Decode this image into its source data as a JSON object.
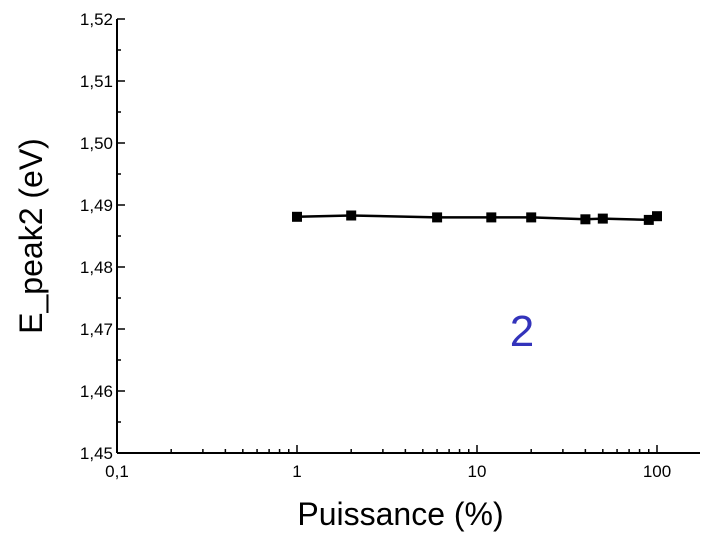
{
  "chart_data": {
    "type": "line",
    "title": "",
    "xlabel": "Puissance (%)",
    "ylabel": "E_peak2 (eV)",
    "x_scale": "log",
    "xlim": [
      0.1,
      200
    ],
    "ylim": [
      1.45,
      1.52
    ],
    "x_ticks": [
      {
        "value": 0.1,
        "label": "0,1"
      },
      {
        "value": 1,
        "label": "1"
      },
      {
        "value": 10,
        "label": "10"
      },
      {
        "value": 100,
        "label": "100"
      }
    ],
    "y_ticks": [
      {
        "value": 1.45,
        "label": "1,45"
      },
      {
        "value": 1.46,
        "label": "1,46"
      },
      {
        "value": 1.47,
        "label": "1,47"
      },
      {
        "value": 1.48,
        "label": "1,48"
      },
      {
        "value": 1.49,
        "label": "1,49"
      },
      {
        "value": 1.5,
        "label": "1,50"
      },
      {
        "value": 1.51,
        "label": "1,51"
      },
      {
        "value": 1.52,
        "label": "1,52"
      }
    ],
    "grid": false,
    "series": [
      {
        "marker": "square",
        "color": "#000000",
        "points": [
          {
            "x": 1,
            "y": 1.4881
          },
          {
            "x": 2,
            "y": 1.4883
          },
          {
            "x": 6,
            "y": 1.488
          },
          {
            "x": 12,
            "y": 1.488
          },
          {
            "x": 20,
            "y": 1.488
          },
          {
            "x": 40,
            "y": 1.4877
          },
          {
            "x": 50,
            "y": 1.4878
          },
          {
            "x": 90,
            "y": 1.4876
          },
          {
            "x": 100,
            "y": 1.4882
          }
        ]
      }
    ],
    "annotations": [
      {
        "text": "2",
        "color": "#3333bb"
      }
    ]
  }
}
